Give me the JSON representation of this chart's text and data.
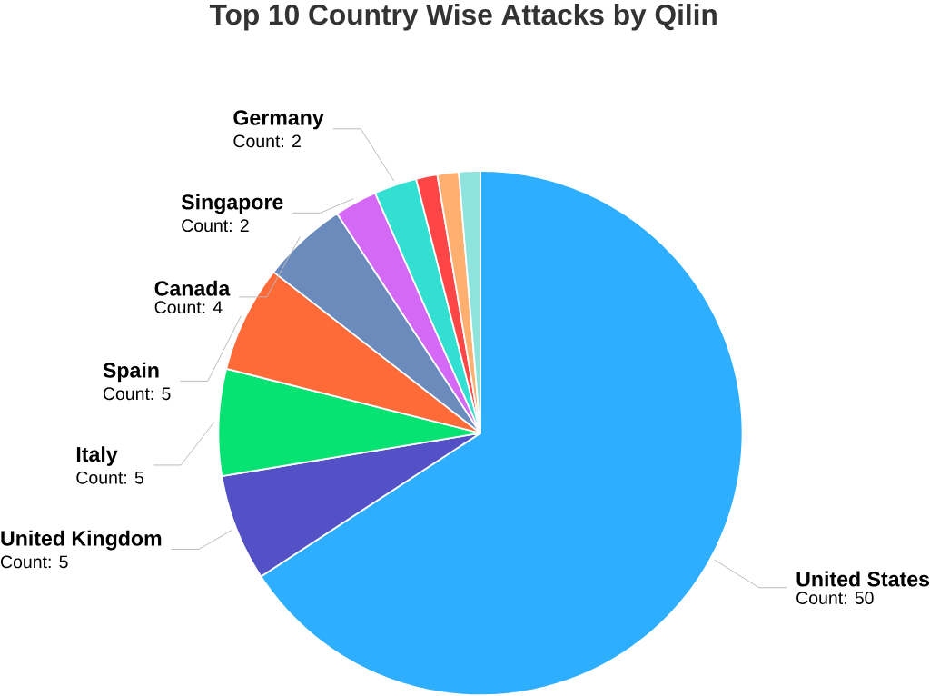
{
  "chart_data": {
    "type": "pie",
    "title": "Top 10 Country Wise Attacks by Qilin",
    "categories": [
      "United States",
      "United Kingdom",
      "Italy",
      "Spain",
      "Canada",
      "Singapore",
      "Germany",
      null,
      null,
      null
    ],
    "values": [
      50,
      5,
      5,
      5,
      4,
      2,
      2,
      1,
      1,
      1
    ],
    "colors": [
      "#2eaeff",
      "#5450c6",
      "#06e373",
      "#ff6a39",
      "#6b8bbd",
      "#d369f5",
      "#33dfd1",
      "#ff4646",
      "#ffb070",
      "#8ee3dc"
    ],
    "value_labels": [
      "Count: 50",
      "Count: 5",
      "Count: 5",
      "Count: 5",
      "Count: 4",
      "Count: 2",
      "Count: 2",
      null,
      null,
      null
    ]
  }
}
